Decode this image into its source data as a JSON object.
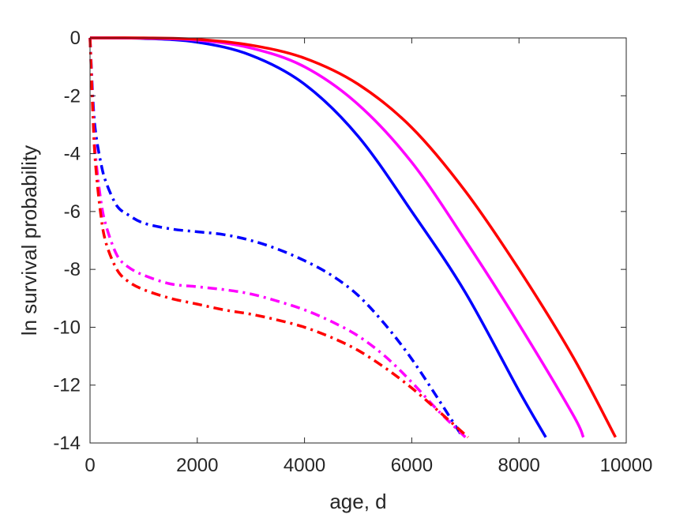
{
  "chart_data": {
    "type": "line",
    "title": "",
    "xlabel": "age, d",
    "ylabel": "ln survival probability",
    "xlim": [
      0,
      10000
    ],
    "ylim": [
      -14,
      0
    ],
    "xticks": [
      0,
      2000,
      4000,
      6000,
      8000,
      10000
    ],
    "yticks": [
      0,
      -2,
      -4,
      -6,
      -8,
      -10,
      -12,
      -14
    ],
    "xtick_labels": [
      "0",
      "2000",
      "4000",
      "6000",
      "8000",
      "10000"
    ],
    "ytick_labels": [
      "0",
      "-2",
      "-4",
      "-6",
      "-8",
      "-10",
      "-12",
      "-14"
    ],
    "grid": false,
    "legend": "none",
    "series": [
      {
        "color": "#0000ff",
        "style": "solid",
        "x": [
          0,
          1000,
          2000,
          3000,
          4000,
          5000,
          6000,
          7000,
          8000,
          8500
        ],
        "y": [
          0,
          -0.02,
          -0.15,
          -0.6,
          -1.6,
          -3.4,
          -6.0,
          -8.8,
          -12.2,
          -13.8
        ]
      },
      {
        "color": "#ff00ff",
        "style": "solid",
        "x": [
          0,
          1000,
          2000,
          3000,
          4000,
          5000,
          6000,
          7000,
          8000,
          9000,
          9200
        ],
        "y": [
          0,
          -0.01,
          -0.08,
          -0.35,
          -1.0,
          -2.3,
          -4.3,
          -7.0,
          -9.9,
          -13.0,
          -13.8
        ]
      },
      {
        "color": "#ff0000",
        "style": "solid",
        "x": [
          0,
          1000,
          2000,
          3000,
          4000,
          5000,
          6000,
          7000,
          8000,
          9000,
          9800
        ],
        "y": [
          0,
          0,
          -0.05,
          -0.25,
          -0.7,
          -1.6,
          -3.1,
          -5.3,
          -8.0,
          -11.0,
          -13.8
        ]
      },
      {
        "color": "#0000ff",
        "style": "dashdot",
        "x": [
          0,
          50,
          100,
          200,
          300,
          500,
          700,
          1000,
          1500,
          2000,
          2500,
          3000,
          3500,
          4000,
          4500,
          5000,
          5500,
          6000,
          6500,
          6950
        ],
        "y": [
          0,
          -2.0,
          -3.2,
          -4.3,
          -5.0,
          -5.8,
          -6.1,
          -6.4,
          -6.6,
          -6.7,
          -6.8,
          -7.0,
          -7.3,
          -7.7,
          -8.2,
          -8.9,
          -9.9,
          -11.1,
          -12.5,
          -13.8
        ]
      },
      {
        "color": "#ff00ff",
        "style": "dashdot",
        "x": [
          0,
          50,
          100,
          200,
          300,
          500,
          700,
          1000,
          1500,
          2000,
          2500,
          3000,
          3500,
          4000,
          4500,
          5000,
          5500,
          6000,
          6500,
          7000
        ],
        "y": [
          0,
          -2.3,
          -4.0,
          -5.6,
          -6.5,
          -7.5,
          -7.9,
          -8.2,
          -8.5,
          -8.6,
          -8.7,
          -8.85,
          -9.1,
          -9.4,
          -9.8,
          -10.3,
          -11.0,
          -11.9,
          -12.9,
          -13.8
        ]
      },
      {
        "color": "#ff0000",
        "style": "dashdot",
        "x": [
          0,
          50,
          100,
          200,
          300,
          500,
          700,
          1000,
          1500,
          2000,
          2500,
          3000,
          3500,
          4000,
          4500,
          5000,
          5500,
          6000,
          6500,
          7050
        ],
        "y": [
          0,
          -2.5,
          -4.3,
          -6.1,
          -7.1,
          -8.0,
          -8.4,
          -8.7,
          -9.0,
          -9.2,
          -9.4,
          -9.55,
          -9.75,
          -10.0,
          -10.35,
          -10.8,
          -11.4,
          -12.1,
          -12.9,
          -13.8
        ]
      }
    ]
  }
}
